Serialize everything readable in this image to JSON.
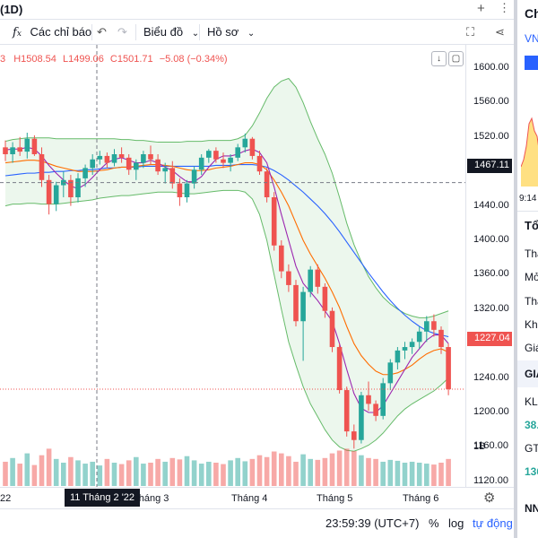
{
  "header": {
    "symbol_suffix": "(1D)",
    "plus_icon": "+",
    "tools_label": "Các chỉ báo",
    "chart_type_label": "Biểu đồ",
    "profile_label": "Hồ sơ"
  },
  "legend": {
    "partial": "3",
    "high": "H1508.54",
    "low": "L1499.06",
    "close": "C1501.71",
    "change": "−5.08 (−0.34%)"
  },
  "price_scale": {
    "labels": [
      "1600.00",
      "1560.00",
      "1520.00",
      "1480.00",
      "1440.00",
      "1400.00",
      "1360.00",
      "1320.00",
      "1280.00",
      "1240.00",
      "1200.00",
      "1160.00",
      "1120.00"
    ],
    "volume_label": "1B",
    "crosshair_price": "1467.11",
    "last_price": "1227.04"
  },
  "time_axis": {
    "labels": [
      "22",
      "Tháng 3",
      "Tháng 4",
      "Tháng 5",
      "Tháng 6"
    ],
    "crosshair_date": "11 Tháng 2 '22"
  },
  "bottom_bar": {
    "time": "23:59:39 (UTC+7)",
    "percent": "%",
    "log": "log",
    "auto": "tự động"
  },
  "right_panel": {
    "title": "Ch",
    "ticker": "VN",
    "time": "9:14",
    "section1": "Tổ",
    "rows": [
      "Tha",
      "Mở",
      "Thấ",
      "Khô",
      "Giá"
    ],
    "section2": "GIA",
    "kl": "KL",
    "kl_value": "38.",
    "gt": "GT",
    "gt_value": "136",
    "nn": "NN"
  },
  "colors": {
    "up": "#26a69a",
    "down": "#ef5350",
    "bb_band": "#66bb6a",
    "ma_blue": "#2962ff",
    "ma_orange": "#ff6d00",
    "ma_purple": "#9c27b0"
  },
  "chart_data": {
    "type": "candlestick",
    "ylim": [
      1120,
      1600
    ],
    "ohlc": [
      [
        1508,
        1516,
        1492,
        1500
      ],
      [
        1500,
        1514,
        1490,
        1508
      ],
      [
        1508,
        1520,
        1498,
        1503
      ],
      [
        1503,
        1525,
        1495,
        1518
      ],
      [
        1518,
        1522,
        1498,
        1500
      ],
      [
        1500,
        1508,
        1462,
        1470
      ],
      [
        1470,
        1476,
        1430,
        1442
      ],
      [
        1442,
        1468,
        1434,
        1464
      ],
      [
        1464,
        1480,
        1450,
        1470
      ],
      [
        1470,
        1476,
        1440,
        1450
      ],
      [
        1450,
        1478,
        1444,
        1472
      ],
      [
        1472,
        1488,
        1462,
        1484
      ],
      [
        1484,
        1500,
        1476,
        1494
      ],
      [
        1494,
        1504,
        1488,
        1498
      ],
      [
        1498,
        1502,
        1484,
        1490
      ],
      [
        1490,
        1506,
        1486,
        1500
      ],
      [
        1500,
        1508,
        1490,
        1496
      ],
      [
        1496,
        1500,
        1476,
        1482
      ],
      [
        1482,
        1494,
        1470,
        1490
      ],
      [
        1490,
        1504,
        1484,
        1500
      ],
      [
        1500,
        1510,
        1488,
        1494
      ],
      [
        1494,
        1500,
        1476,
        1480
      ],
      [
        1480,
        1490,
        1466,
        1484
      ],
      [
        1484,
        1492,
        1460,
        1466
      ],
      [
        1466,
        1472,
        1440,
        1450
      ],
      [
        1450,
        1470,
        1444,
        1466
      ],
      [
        1466,
        1486,
        1460,
        1482
      ],
      [
        1482,
        1500,
        1476,
        1496
      ],
      [
        1496,
        1506,
        1490,
        1504
      ],
      [
        1504,
        1508,
        1490,
        1494
      ],
      [
        1494,
        1502,
        1484,
        1490
      ],
      [
        1490,
        1500,
        1480,
        1496
      ],
      [
        1496,
        1512,
        1492,
        1508
      ],
      [
        1508,
        1524,
        1502,
        1518
      ],
      [
        1518,
        1520,
        1494,
        1498
      ],
      [
        1498,
        1504,
        1476,
        1480
      ],
      [
        1480,
        1484,
        1444,
        1450
      ],
      [
        1450,
        1456,
        1388,
        1394
      ],
      [
        1394,
        1400,
        1356,
        1364
      ],
      [
        1364,
        1372,
        1340,
        1348
      ],
      [
        1348,
        1354,
        1300,
        1306
      ],
      [
        1306,
        1346,
        1260,
        1340
      ],
      [
        1340,
        1370,
        1334,
        1366
      ],
      [
        1366,
        1372,
        1338,
        1346
      ],
      [
        1346,
        1350,
        1310,
        1318
      ],
      [
        1318,
        1322,
        1270,
        1276
      ],
      [
        1276,
        1280,
        1222,
        1226
      ],
      [
        1226,
        1230,
        1172,
        1178
      ],
      [
        1178,
        1186,
        1158,
        1168
      ],
      [
        1168,
        1224,
        1164,
        1220
      ],
      [
        1220,
        1236,
        1202,
        1210
      ],
      [
        1210,
        1214,
        1190,
        1196
      ],
      [
        1196,
        1240,
        1192,
        1234
      ],
      [
        1234,
        1262,
        1226,
        1258
      ],
      [
        1258,
        1276,
        1250,
        1272
      ],
      [
        1272,
        1282,
        1262,
        1276
      ],
      [
        1276,
        1286,
        1268,
        1282
      ],
      [
        1282,
        1300,
        1274,
        1294
      ],
      [
        1294,
        1312,
        1282,
        1306
      ],
      [
        1306,
        1314,
        1288,
        1296
      ],
      [
        1296,
        1300,
        1268,
        1276
      ],
      [
        1276,
        1280,
        1220,
        1227
      ]
    ],
    "volume": [
      52,
      60,
      48,
      70,
      45,
      66,
      80,
      58,
      50,
      62,
      55,
      48,
      52,
      44,
      58,
      50,
      47,
      55,
      62,
      48,
      50,
      58,
      52,
      60,
      57,
      64,
      55,
      48,
      52,
      50,
      47,
      55,
      60,
      53,
      58,
      66,
      62,
      74,
      70,
      64,
      52,
      68,
      58,
      56,
      60,
      70,
      76,
      80,
      75,
      66,
      60,
      58,
      52,
      56,
      54,
      50,
      52,
      50,
      48,
      46,
      50,
      58
    ],
    "bb_upper": [
      1515,
      1517,
      1518,
      1519,
      1519,
      1519,
      1519,
      1518,
      1518,
      1518,
      1518,
      1518,
      1518,
      1518,
      1518,
      1518,
      1517,
      1517,
      1516,
      1516,
      1515,
      1514,
      1514,
      1514,
      1514,
      1515,
      1515,
      1515,
      1516,
      1516,
      1516,
      1516,
      1518,
      1522,
      1533,
      1548,
      1565,
      1578,
      1585,
      1588,
      1578,
      1560,
      1538,
      1518,
      1500,
      1478,
      1450,
      1420,
      1395,
      1375,
      1358,
      1345,
      1334,
      1326,
      1320,
      1315,
      1312,
      1310,
      1310,
      1312,
      1315,
      1318
    ],
    "bb_lower": [
      1440,
      1442,
      1442,
      1443,
      1443,
      1442,
      1442,
      1442,
      1443,
      1444,
      1445,
      1446,
      1447,
      1449,
      1450,
      1451,
      1452,
      1452,
      1453,
      1454,
      1455,
      1456,
      1456,
      1456,
      1455,
      1454,
      1454,
      1455,
      1456,
      1457,
      1458,
      1458,
      1458,
      1456,
      1448,
      1430,
      1400,
      1360,
      1320,
      1282,
      1255,
      1230,
      1210,
      1195,
      1180,
      1168,
      1160,
      1156,
      1155,
      1158,
      1162,
      1168,
      1176,
      1186,
      1196,
      1204,
      1210,
      1215,
      1220,
      1225,
      1232,
      1240
    ],
    "ma_blue": [
      1475,
      1476,
      1477,
      1478,
      1478,
      1479,
      1479,
      1480,
      1480,
      1481,
      1481,
      1482,
      1482,
      1483,
      1484,
      1484,
      1485,
      1485,
      1485,
      1486,
      1486,
      1486,
      1486,
      1486,
      1486,
      1486,
      1486,
      1486,
      1486,
      1487,
      1487,
      1487,
      1488,
      1488,
      1488,
      1487,
      1485,
      1481,
      1476,
      1470,
      1463,
      1456,
      1448,
      1440,
      1431,
      1421,
      1410,
      1398,
      1386,
      1374,
      1362,
      1351,
      1340,
      1330,
      1321,
      1313,
      1306,
      1300,
      1295,
      1292,
      1290,
      1288
    ],
    "ma_orange": [
      1490,
      1491,
      1492,
      1493,
      1493,
      1492,
      1489,
      1486,
      1484,
      1482,
      1480,
      1480,
      1480,
      1481,
      1482,
      1484,
      1485,
      1485,
      1486,
      1487,
      1488,
      1488,
      1487,
      1486,
      1484,
      1482,
      1481,
      1481,
      1482,
      1484,
      1485,
      1486,
      1488,
      1490,
      1490,
      1488,
      1482,
      1470,
      1456,
      1440,
      1420,
      1400,
      1384,
      1370,
      1356,
      1340,
      1322,
      1300,
      1280,
      1266,
      1256,
      1248,
      1244,
      1244,
      1246,
      1250,
      1255,
      1262,
      1268,
      1272,
      1274,
      1270
    ],
    "ma_purple": [
      1505,
      1506,
      1506,
      1508,
      1506,
      1498,
      1487,
      1478,
      1470,
      1463,
      1460,
      1465,
      1473,
      1482,
      1490,
      1494,
      1496,
      1493,
      1490,
      1490,
      1493,
      1490,
      1485,
      1481,
      1474,
      1468,
      1468,
      1474,
      1485,
      1494,
      1498,
      1498,
      1500,
      1504,
      1506,
      1502,
      1490,
      1462,
      1430,
      1400,
      1370,
      1350,
      1340,
      1330,
      1318,
      1306,
      1280,
      1250,
      1222,
      1205,
      1200,
      1200,
      1208,
      1222,
      1236,
      1250,
      1264,
      1274,
      1284,
      1290,
      1290,
      1280
    ]
  }
}
